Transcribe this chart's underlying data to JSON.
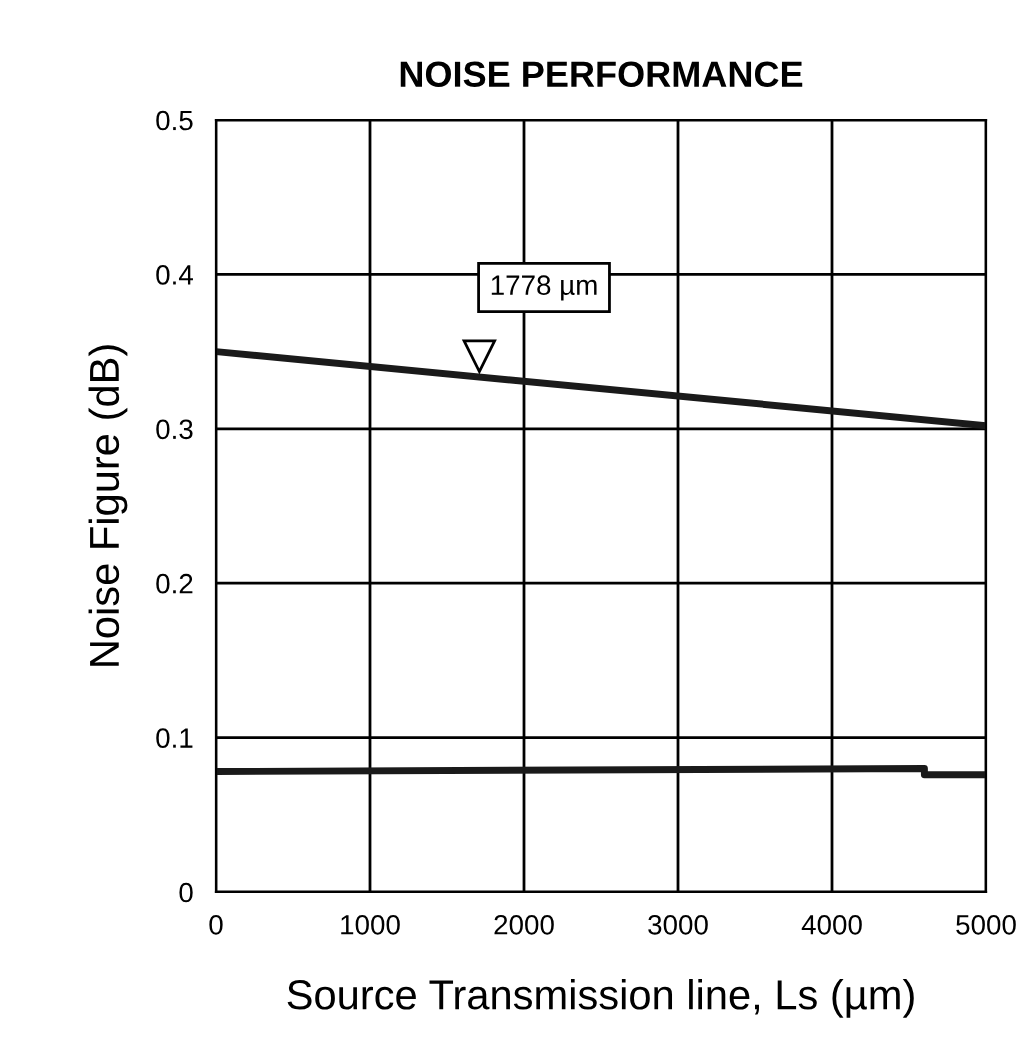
{
  "chart_data": {
    "type": "line",
    "title": "NOISE PERFORMANCE",
    "xlabel": "Source Transmission line, Ls (µm)",
    "ylabel": "Noise Figure (dB)",
    "xlim": [
      0,
      5000
    ],
    "ylim": [
      0,
      0.5
    ],
    "xticks": [
      0,
      1000,
      2000,
      3000,
      4000,
      5000
    ],
    "yticks": [
      0,
      0.1,
      0.2,
      0.3,
      0.4,
      0.5
    ],
    "grid": true,
    "series": [
      {
        "color": "#1a1a1a",
        "x": [
          0,
          5000
        ],
        "values": [
          0.35,
          0.302
        ]
      },
      {
        "color": "#1a1a1a",
        "x": [
          0,
          4600,
          4600,
          5000
        ],
        "values": [
          0.078,
          0.08,
          0.076,
          0.076
        ]
      }
    ],
    "annotations": [
      "1778 µm"
    ]
  }
}
